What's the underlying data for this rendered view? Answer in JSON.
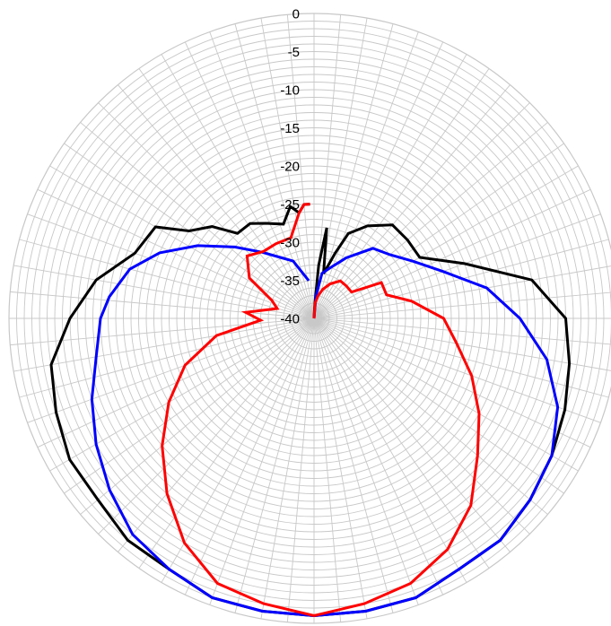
{
  "chart_data": {
    "type": "polar-line",
    "title": "",
    "radial_axis": {
      "min": -40,
      "max": 0,
      "major_step": 5,
      "minor_step": 1,
      "tick_labels": [
        "0",
        "-5",
        "-10",
        "-15",
        "-20",
        "-25",
        "-30",
        "-35",
        "-40"
      ]
    },
    "angular_axis": {
      "min": 0,
      "max": 360,
      "step_deg": 5,
      "zero_direction": "top",
      "direction": "clockwise"
    },
    "grid": true,
    "legend": false,
    "series": [
      {
        "color": "#000000",
        "points": [
          [
            0,
            -40
          ],
          [
            3,
            -38
          ],
          [
            5,
            -33
          ],
          [
            8,
            -28
          ],
          [
            12,
            -34
          ],
          [
            18,
            -31
          ],
          [
            22,
            -28
          ],
          [
            30,
            -26
          ],
          [
            40,
            -24
          ],
          [
            50,
            -24
          ],
          [
            60,
            -24
          ],
          [
            70,
            -19
          ],
          [
            80,
            -11
          ],
          [
            90,
            -7
          ],
          [
            100,
            -6
          ],
          [
            110,
            -5
          ],
          [
            120,
            -4
          ],
          [
            130,
            -3
          ],
          [
            140,
            -2
          ],
          [
            150,
            -2
          ],
          [
            160,
            -1
          ],
          [
            170,
            -1
          ],
          [
            180,
            -1
          ],
          [
            190,
            -1
          ],
          [
            200,
            -1
          ],
          [
            210,
            -2
          ],
          [
            220,
            -2
          ],
          [
            230,
            -3
          ],
          [
            240,
            -3
          ],
          [
            250,
            -4
          ],
          [
            260,
            -5
          ],
          [
            270,
            -8
          ],
          [
            280,
            -11
          ],
          [
            290,
            -15
          ],
          [
            300,
            -16
          ],
          [
            305,
            -20
          ],
          [
            312,
            -22
          ],
          [
            318,
            -25
          ],
          [
            326,
            -25
          ],
          [
            333,
            -26
          ],
          [
            342,
            -27
          ],
          [
            348,
            -25
          ],
          [
            352,
            -26
          ],
          [
            355,
            -25
          ],
          [
            358,
            -25
          ]
        ]
      },
      {
        "color": "#0000ff",
        "points": [
          [
            0,
            -40
          ],
          [
            5,
            -37
          ],
          [
            10,
            -34
          ],
          [
            18,
            -33
          ],
          [
            28,
            -31
          ],
          [
            40,
            -28
          ],
          [
            50,
            -27
          ],
          [
            60,
            -25
          ],
          [
            70,
            -22
          ],
          [
            80,
            -17
          ],
          [
            90,
            -13
          ],
          [
            100,
            -9
          ],
          [
            110,
            -6
          ],
          [
            120,
            -4
          ],
          [
            130,
            -3
          ],
          [
            140,
            -2
          ],
          [
            150,
            -2
          ],
          [
            160,
            -1
          ],
          [
            170,
            -1
          ],
          [
            180,
            -1
          ],
          [
            190,
            -1
          ],
          [
            200,
            -1
          ],
          [
            210,
            -2
          ],
          [
            220,
            -3
          ],
          [
            230,
            -5
          ],
          [
            240,
            -7
          ],
          [
            250,
            -9
          ],
          [
            260,
            -11
          ],
          [
            270,
            -12
          ],
          [
            276,
            -13
          ],
          [
            285,
            -15
          ],
          [
            293,
            -18
          ],
          [
            302,
            -22
          ],
          [
            312,
            -26
          ],
          [
            322,
            -29
          ],
          [
            332,
            -31
          ],
          [
            340,
            -32
          ],
          [
            352,
            -35
          ]
        ]
      },
      {
        "color": "#ff0000",
        "points": [
          [
            0,
            -40
          ],
          [
            4,
            -38
          ],
          [
            10,
            -37
          ],
          [
            17,
            -36
          ],
          [
            25,
            -35
          ],
          [
            35,
            -34
          ],
          [
            45,
            -34
          ],
          [
            55,
            -34
          ],
          [
            62,
            -30
          ],
          [
            72,
            -30
          ],
          [
            80,
            -27
          ],
          [
            90,
            -23
          ],
          [
            100,
            -21
          ],
          [
            110,
            -18
          ],
          [
            120,
            -15
          ],
          [
            130,
            -12
          ],
          [
            140,
            -8
          ],
          [
            150,
            -5
          ],
          [
            160,
            -3
          ],
          [
            170,
            -2
          ],
          [
            180,
            -1
          ],
          [
            190,
            -2
          ],
          [
            200,
            -3
          ],
          [
            210,
            -6
          ],
          [
            220,
            -10
          ],
          [
            230,
            -14
          ],
          [
            240,
            -18
          ],
          [
            250,
            -22
          ],
          [
            260,
            -27
          ],
          [
            268,
            -33
          ],
          [
            275,
            -31
          ],
          [
            285,
            -35
          ],
          [
            293,
            -34
          ],
          [
            302,
            -30
          ],
          [
            313,
            -28
          ],
          [
            323,
            -29
          ],
          [
            333,
            -29
          ],
          [
            344,
            -29
          ],
          [
            352,
            -26
          ],
          [
            355,
            -25
          ],
          [
            358,
            -25
          ]
        ]
      }
    ]
  }
}
